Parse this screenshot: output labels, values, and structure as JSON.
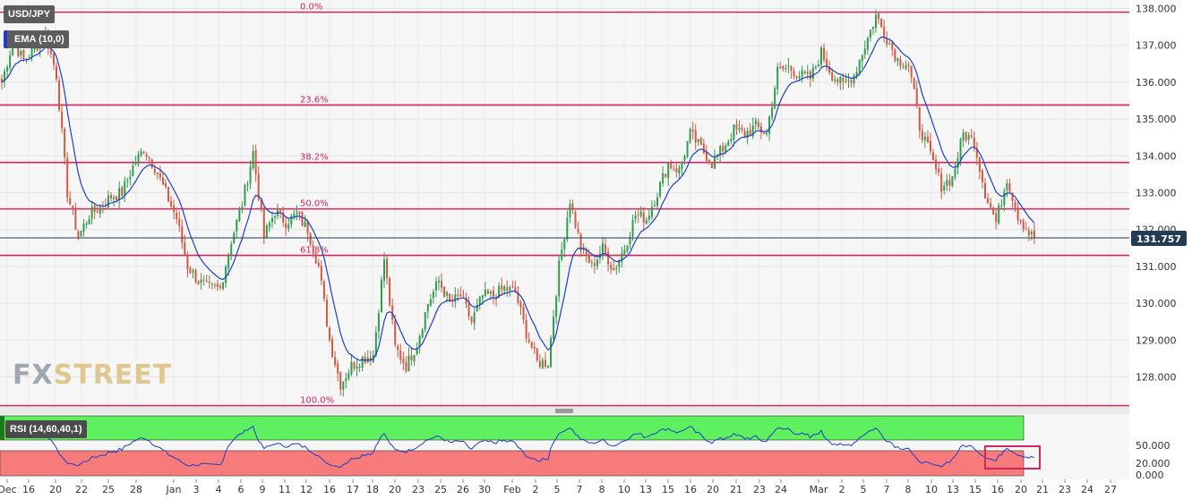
{
  "header": {
    "symbol": "USD/JPY",
    "indicator": "EMA (10,0)",
    "rsi_label": "RSI (14,60,40,1)"
  },
  "watermark": {
    "part1": "FX",
    "part2": "STREET"
  },
  "price_badge": "131.757",
  "colors": {
    "up": "#2e9d4e",
    "down": "#d05a44",
    "ema": "#1f3fc6",
    "fib": "#d6245e",
    "rsi_line": "#1f3fc6",
    "rsi_high": "#5ef05e",
    "rsi_low": "#f77b7b",
    "badge": "#243b55"
  },
  "chart_data": {
    "type": "candlestick",
    "y_ticks": [
      "138.000",
      "137.000",
      "136.000",
      "135.000",
      "134.000",
      "133.000",
      "132.000",
      "131.000",
      "130.000",
      "129.000",
      "128.000"
    ],
    "x_ticks": [
      "Dec",
      "16",
      "20",
      "22",
      "25",
      "28",
      "Jan",
      "3",
      "4",
      "6",
      "9",
      "11",
      "12",
      "16",
      "17",
      "18",
      "20",
      "23",
      "25",
      "26",
      "30",
      "Feb",
      "2",
      "5",
      "7",
      "8",
      "10",
      "13",
      "15",
      "16",
      "20",
      "21",
      "23",
      "24",
      "Mar",
      "2",
      "5",
      "7",
      "8",
      "10",
      "13",
      "15",
      "16",
      "20",
      "21",
      "23",
      "24",
      "27"
    ],
    "fib_levels": [
      {
        "label": "0.0%",
        "price": 137.9
      },
      {
        "label": "23.6%",
        "price": 135.38
      },
      {
        "label": "38.2%",
        "price": 133.82
      },
      {
        "label": "50.0%",
        "price": 132.56
      },
      {
        "label": "61.8%",
        "price": 131.3
      },
      {
        "label": "100.0%",
        "price": 127.22
      }
    ],
    "last_price": 131.757,
    "rsi": {
      "ticks": [
        "50.000",
        "20.000",
        "0.000"
      ],
      "upper": 60,
      "lower": 40,
      "period": 14
    },
    "close_path": [
      [
        0,
        136.0
      ],
      [
        4,
        137.1
      ],
      [
        8,
        136.6
      ],
      [
        12,
        136.9
      ],
      [
        16,
        137.3
      ],
      [
        20,
        136.2
      ],
      [
        24,
        133.0
      ],
      [
        28,
        131.8
      ],
      [
        32,
        132.4
      ],
      [
        36,
        132.6
      ],
      [
        40,
        132.9
      ],
      [
        44,
        133.0
      ],
      [
        48,
        133.7
      ],
      [
        52,
        134.2
      ],
      [
        56,
        133.7
      ],
      [
        60,
        133.0
      ],
      [
        64,
        132.3
      ],
      [
        68,
        131.0
      ],
      [
        72,
        130.6
      ],
      [
        76,
        130.4
      ],
      [
        80,
        130.4
      ],
      [
        84,
        131.7
      ],
      [
        88,
        132.7
      ],
      [
        92,
        134.1
      ],
      [
        96,
        131.8
      ],
      [
        100,
        132.5
      ],
      [
        104,
        132.2
      ],
      [
        108,
        132.4
      ],
      [
        112,
        132.0
      ],
      [
        116,
        131.0
      ],
      [
        120,
        129.0
      ],
      [
        124,
        127.8
      ],
      [
        128,
        128.3
      ],
      [
        132,
        128.5
      ],
      [
        136,
        128.6
      ],
      [
        140,
        131.2
      ],
      [
        144,
        128.8
      ],
      [
        148,
        128.3
      ],
      [
        152,
        128.9
      ],
      [
        156,
        130.0
      ],
      [
        160,
        130.6
      ],
      [
        164,
        130.0
      ],
      [
        168,
        130.2
      ],
      [
        172,
        129.5
      ],
      [
        176,
        130.2
      ],
      [
        180,
        130.2
      ],
      [
        184,
        130.4
      ],
      [
        188,
        130.3
      ],
      [
        192,
        129.2
      ],
      [
        196,
        128.4
      ],
      [
        200,
        128.4
      ],
      [
        204,
        131.0
      ],
      [
        208,
        132.8
      ],
      [
        212,
        131.5
      ],
      [
        216,
        131.0
      ],
      [
        220,
        131.5
      ],
      [
        224,
        130.9
      ],
      [
        228,
        131.5
      ],
      [
        232,
        132.4
      ],
      [
        236,
        132.3
      ],
      [
        240,
        133.0
      ],
      [
        244,
        133.8
      ],
      [
        248,
        133.6
      ],
      [
        252,
        134.6
      ],
      [
        256,
        134.2
      ],
      [
        260,
        133.8
      ],
      [
        264,
        134.2
      ],
      [
        268,
        134.7
      ],
      [
        272,
        134.6
      ],
      [
        276,
        134.8
      ],
      [
        280,
        134.6
      ],
      [
        284,
        136.3
      ],
      [
        288,
        136.4
      ],
      [
        292,
        136.2
      ],
      [
        296,
        136.1
      ],
      [
        300,
        136.8
      ],
      [
        304,
        136.2
      ],
      [
        308,
        135.9
      ],
      [
        312,
        136.2
      ],
      [
        316,
        137.0
      ],
      [
        320,
        137.8
      ],
      [
        324,
        137.2
      ],
      [
        328,
        136.6
      ],
      [
        332,
        136.5
      ],
      [
        336,
        134.8
      ],
      [
        340,
        134.0
      ],
      [
        344,
        133.2
      ],
      [
        348,
        133.4
      ],
      [
        352,
        134.6
      ],
      [
        356,
        134.4
      ],
      [
        360,
        133.0
      ],
      [
        364,
        132.2
      ],
      [
        368,
        133.4
      ],
      [
        372,
        132.4
      ],
      [
        376,
        131.9
      ],
      [
        378,
        131.76
      ]
    ]
  }
}
